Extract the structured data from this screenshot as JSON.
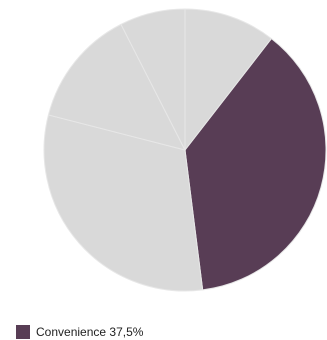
{
  "chart_data": {
    "type": "pie",
    "slices": [
      {
        "label": "Convenience",
        "value": 37.5,
        "color": "#583d55",
        "highlighted": true
      },
      {
        "value": 31.0,
        "color": "#d9d9d9"
      },
      {
        "value": 13.5,
        "color": "#d9d9d9"
      },
      {
        "value": 7.5,
        "color": "#d9d9d9"
      },
      {
        "value": 10.5,
        "color": "#d9d9d9"
      }
    ],
    "start": "clockwise from the 12 o'clock position, beginning after the top-right slice",
    "legend": {
      "placement": "bottom-left",
      "label": "Convenience",
      "value_text": "37,5%"
    }
  },
  "colors": {
    "highlight": "#583d55",
    "other": "#d9d9d9",
    "separator": "#e7e7e7"
  }
}
